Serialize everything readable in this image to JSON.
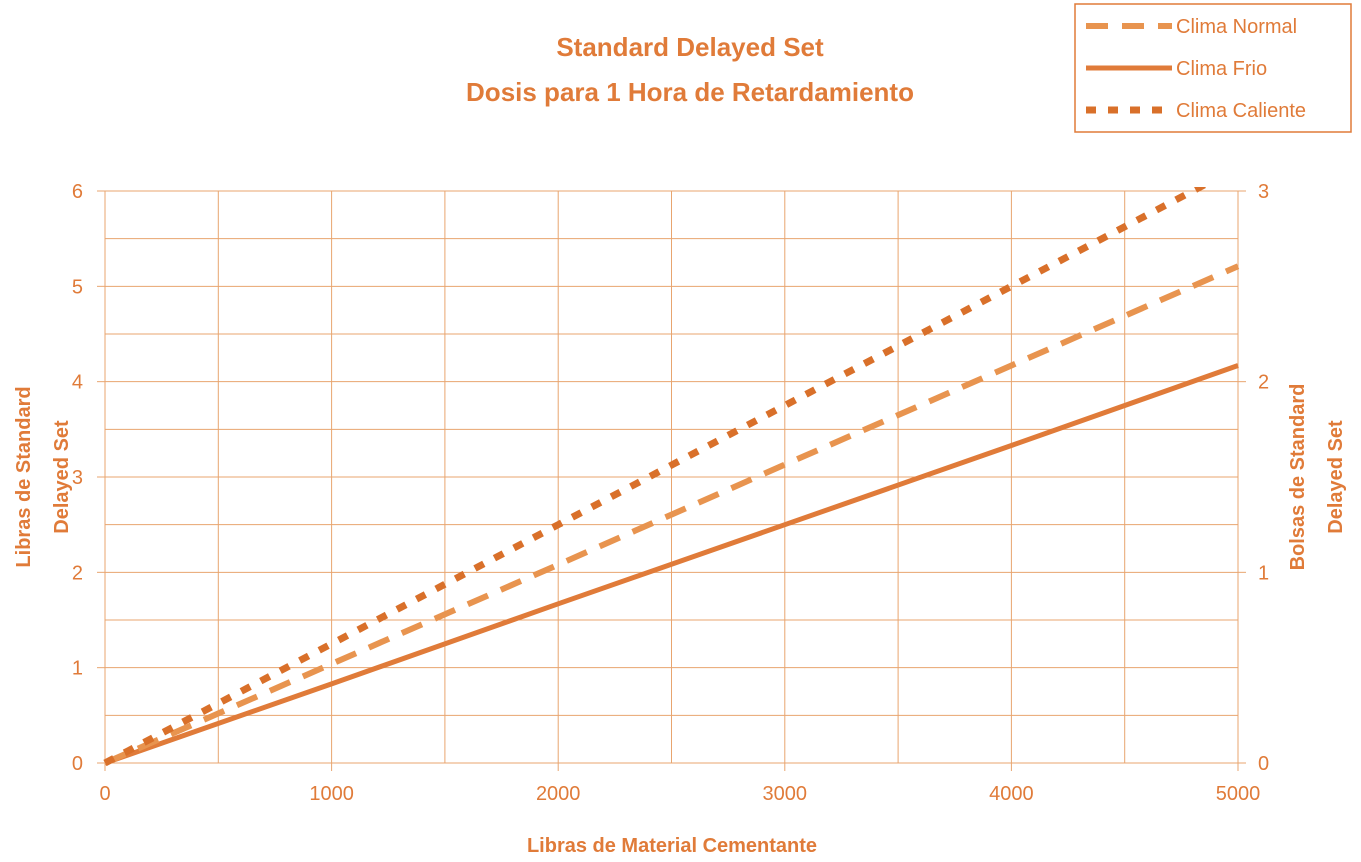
{
  "chart_data": {
    "type": "line",
    "title": [
      "Standard Delayed Set",
      "Dosis para 1 Hora de Retardamiento"
    ],
    "xlabel": "Libras de Material Cementante",
    "ylabel": [
      "Libras de Standard",
      "Delayed Set"
    ],
    "y2label": [
      "Bolsas de Standard",
      "Delayed Set"
    ],
    "xlim": [
      0,
      5000
    ],
    "ylim": [
      0,
      6
    ],
    "y2lim": [
      0,
      3
    ],
    "x_ticks": [
      "0",
      "1000",
      "2000",
      "3000",
      "4000",
      "5000"
    ],
    "y_ticks": [
      "0",
      "1",
      "2",
      "3",
      "4",
      "5",
      "6"
    ],
    "y2_ticks": [
      "0",
      "1",
      "2",
      "3"
    ],
    "grid": true,
    "legend_position": "top-right",
    "x": [
      0,
      1000,
      2000,
      3000,
      4000,
      5000
    ],
    "series": [
      {
        "name": "Clima Normal",
        "values": [
          0,
          1.04,
          2.08,
          3.13,
          4.17,
          5.21
        ],
        "color": "#E8944F",
        "dash": "long-dash"
      },
      {
        "name": "Clima Frio",
        "values": [
          0,
          0.83,
          1.67,
          2.5,
          3.33,
          4.17
        ],
        "color": "#E07B39",
        "dash": "solid"
      },
      {
        "name": "Clima Caliente",
        "values": [
          0,
          1.25,
          2.5,
          3.75,
          5.0,
          6.25
        ],
        "color": "#D9702A",
        "dash": "short-dash"
      }
    ],
    "colors": {
      "text": "#E07B39",
      "grid": "#E8A56F"
    }
  }
}
